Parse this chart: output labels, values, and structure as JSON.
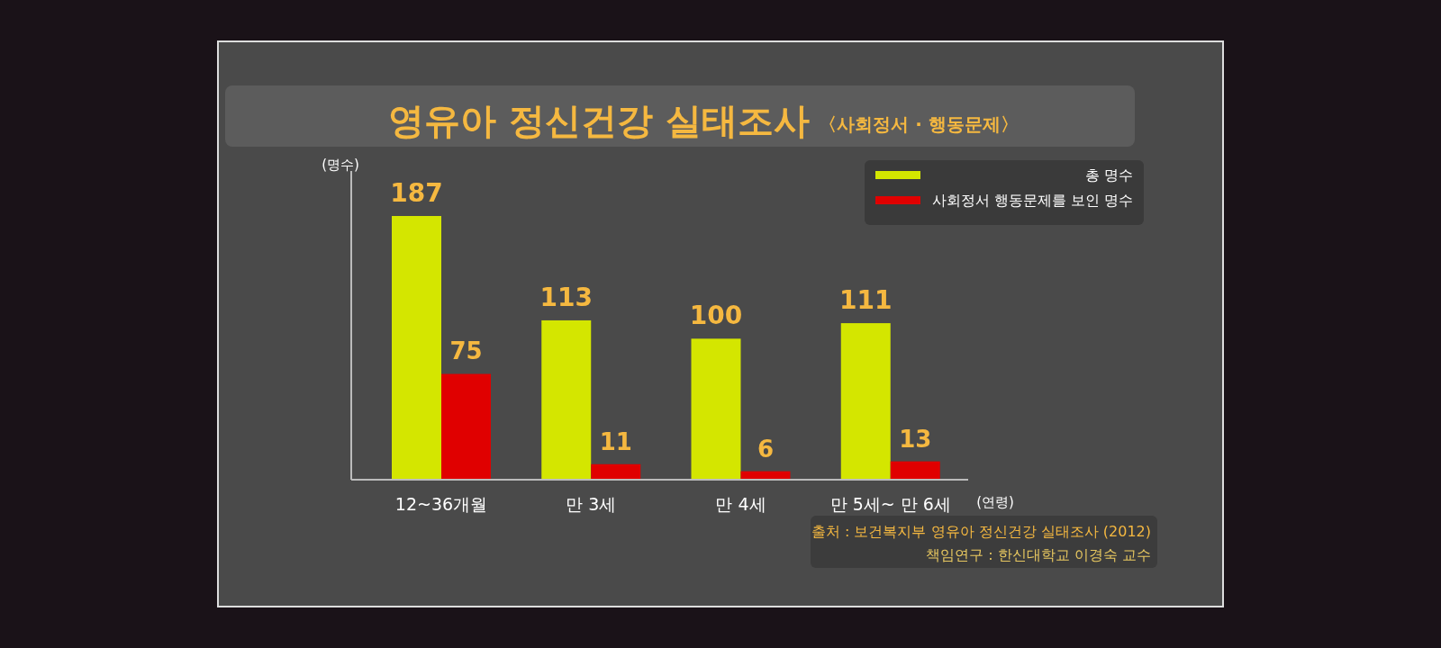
{
  "chart_data": {
    "type": "bar",
    "title": "영유아 정신건강 실태조사",
    "subtitle": "〈사회정서 · 행동문제〉",
    "ylabel": "(명수)",
    "xlabel": "(연령)",
    "categories": [
      "12~36개월",
      "만 3세",
      "만 4세",
      "만 5세~ 만 6세"
    ],
    "series": [
      {
        "name": "총 명수",
        "color": "#d4e600",
        "values": [
          187,
          113,
          100,
          111
        ]
      },
      {
        "name": "사회정서 행동문제를 보인 명수",
        "color": "#e00000",
        "values": [
          75,
          11,
          6,
          13
        ]
      }
    ],
    "data_labels": true,
    "legend": "top right",
    "annotations": [
      "출처 : 보건복지부 영유아 정신건강 실태조사 (2012)",
      "책임연구 : 한신대학교 이경숙 교수"
    ]
  }
}
